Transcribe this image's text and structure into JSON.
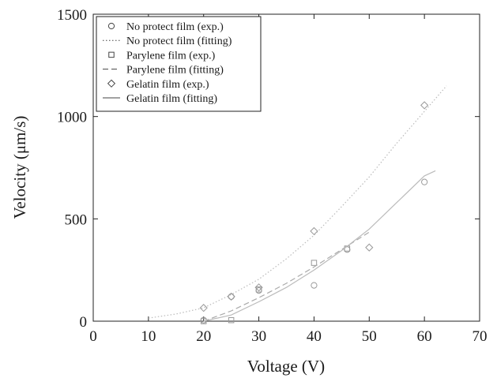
{
  "chart_data": {
    "type": "scatter",
    "title": "",
    "xlabel": "Voltage (V)",
    "ylabel": "Velocity (μm/s)",
    "xlim": [
      0,
      70
    ],
    "ylim": [
      0,
      1500
    ],
    "xticks": [
      0,
      10,
      20,
      30,
      40,
      50,
      60,
      70
    ],
    "yticks": [
      0,
      500,
      1000,
      1500
    ],
    "grid": false,
    "legend_position": "top-left",
    "series": [
      {
        "name": "No protect film (exp.)",
        "kind": "points",
        "marker": "circle",
        "color": "#999999",
        "x": [
          20,
          25,
          30,
          40,
          46,
          60
        ],
        "y": [
          5,
          120,
          150,
          175,
          350,
          680
        ]
      },
      {
        "name": "No protect film (fitting)",
        "kind": "line",
        "dash": "dotted",
        "color": "#bbbbbb",
        "x": [
          10,
          15,
          20,
          25,
          30,
          35,
          40,
          45,
          50,
          55,
          60,
          64
        ],
        "y": [
          15,
          35,
          65,
          130,
          205,
          305,
          420,
          560,
          705,
          870,
          1025,
          1150
        ]
      },
      {
        "name": "Parylene film (exp.)",
        "kind": "points",
        "marker": "square",
        "color": "#999999",
        "x": [
          20,
          25,
          30,
          40,
          46
        ],
        "y": [
          0,
          5,
          155,
          285,
          355
        ]
      },
      {
        "name": "Parylene film (fitting)",
        "kind": "line",
        "dash": "dashed",
        "color": "#aaaaaa",
        "x": [
          20,
          25,
          30,
          35,
          40,
          45,
          50
        ],
        "y": [
          0,
          50,
          115,
          185,
          265,
          350,
          435
        ]
      },
      {
        "name": "Gelatin film (exp.)",
        "kind": "points",
        "marker": "diamond",
        "color": "#999999",
        "x": [
          20,
          25,
          30,
          40,
          50,
          60
        ],
        "y": [
          65,
          120,
          165,
          440,
          360,
          1055
        ]
      },
      {
        "name": "Gelatin film (fitting)",
        "kind": "line",
        "dash": "solid",
        "color": "#bbbbbb",
        "x": [
          20,
          25,
          30,
          35,
          40,
          45,
          50,
          55,
          60,
          62
        ],
        "y": [
          0,
          30,
          95,
          165,
          250,
          345,
          450,
          580,
          710,
          735
        ]
      }
    ]
  }
}
